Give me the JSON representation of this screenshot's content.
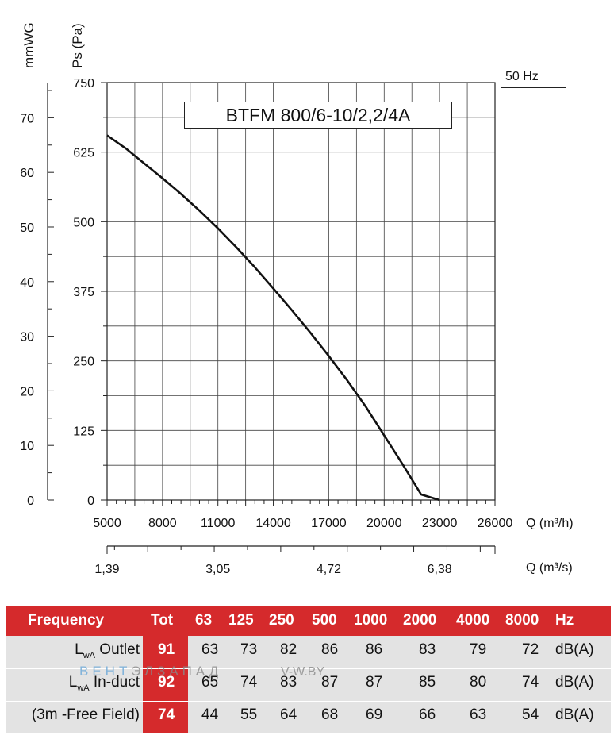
{
  "title": "BTFM 800/6-10/2,2/4A",
  "frequency_label": "50 Hz",
  "chart_data": {
    "type": "line",
    "title": "BTFM 800/6-10/2,2/4A",
    "ylabel": "Ps (Pa)",
    "ylabel2": "mmWG",
    "xlabel": "Q (m³/h)",
    "xlabel2": "Q (m³/s)",
    "xlim": [
      5000,
      26000
    ],
    "ylim": [
      0,
      750
    ],
    "y2lim": [
      0,
      76.45
    ],
    "xticks": [
      "5000",
      "8000",
      "11000",
      "14000",
      "17000",
      "20000",
      "23000",
      "26000"
    ],
    "yticks": [
      "0",
      "125",
      "250",
      "375",
      "500",
      "625",
      "750"
    ],
    "y2ticks": [
      "0",
      "10",
      "20",
      "30",
      "40",
      "50",
      "60",
      "70"
    ],
    "x2ticks": [
      "1,39",
      "3,05",
      "4,72",
      "6,38"
    ],
    "grid": true,
    "series": [
      {
        "values_x": [
          5000,
          6000,
          7000,
          8000,
          9000,
          10000,
          11000,
          12000,
          13000,
          14000,
          15000,
          16000,
          17000,
          18000,
          19000,
          20000,
          21000,
          22000,
          23000
        ],
        "values_y": [
          655,
          632,
          605,
          578,
          550,
          520,
          488,
          454,
          418,
          380,
          341,
          301,
          259,
          215,
          168,
          116,
          64,
          10,
          -15
        ],
        "color": "#111111"
      }
    ]
  },
  "table": {
    "header": [
      "Frequency",
      "Tot",
      "63",
      "125",
      "250",
      "500",
      "1000",
      "2000",
      "4000",
      "8000",
      "Hz"
    ],
    "rows": [
      {
        "label_main": "L",
        "label_sub": "wA",
        "label_rest": " Outlet",
        "tot": "91",
        "values": [
          "63",
          "73",
          "82",
          "86",
          "86",
          "83",
          "79",
          "72"
        ],
        "unit": "dB(A)"
      },
      {
        "label_main": "L",
        "label_sub": "wA",
        "label_rest": " In-duct",
        "tot": "92",
        "values": [
          "65",
          "74",
          "83",
          "87",
          "87",
          "85",
          "80",
          "74"
        ],
        "unit": "dB(A)"
      },
      {
        "label_main": "(3m -Free Field)",
        "label_sub": "",
        "label_rest": "",
        "tot": "74",
        "values": [
          "44",
          "55",
          "64",
          "68",
          "69",
          "66",
          "63",
          "54"
        ],
        "unit": "dB(A)"
      }
    ]
  },
  "watermark": {
    "part1": "ВЕНТ",
    "part2": "ЭЛЗАПАД",
    "site": "V-W.BY"
  },
  "colors": {
    "header_red": "#d52a2c",
    "row_grey": "#e3e3e3"
  }
}
